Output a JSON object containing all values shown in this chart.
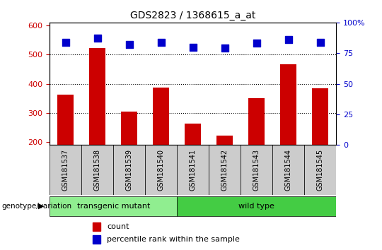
{
  "title": "GDS2823 / 1368615_a_at",
  "samples": [
    "GSM181537",
    "GSM181538",
    "GSM181539",
    "GSM181540",
    "GSM181541",
    "GSM181542",
    "GSM181543",
    "GSM181544",
    "GSM181545"
  ],
  "counts": [
    362,
    522,
    305,
    388,
    264,
    222,
    350,
    468,
    384
  ],
  "percentile_ranks": [
    84,
    87,
    82,
    84,
    80,
    79,
    83,
    86,
    84
  ],
  "ylim_left": [
    190,
    610
  ],
  "ylim_right": [
    0,
    100
  ],
  "yticks_left": [
    200,
    300,
    400,
    500,
    600
  ],
  "yticks_right": [
    0,
    25,
    50,
    75,
    100
  ],
  "grid_values": [
    300,
    400,
    500
  ],
  "bar_color": "#cc0000",
  "dot_color": "#0000cc",
  "transgenic_color": "#90ee90",
  "wild_type_color": "#44cc44",
  "label_col_color": "#cccccc",
  "transgenic_label": "transgenic mutant",
  "wild_type_label": "wild type",
  "transgenic_indices": [
    0,
    1,
    2,
    3
  ],
  "wild_type_indices": [
    4,
    5,
    6,
    7,
    8
  ],
  "legend_count_label": "count",
  "legend_percentile_label": "percentile rank within the sample",
  "genotype_label": "genotype/variation",
  "left_axis_color": "#cc0000",
  "right_axis_color": "#0000cc",
  "bar_width": 0.5,
  "dot_size": 45
}
